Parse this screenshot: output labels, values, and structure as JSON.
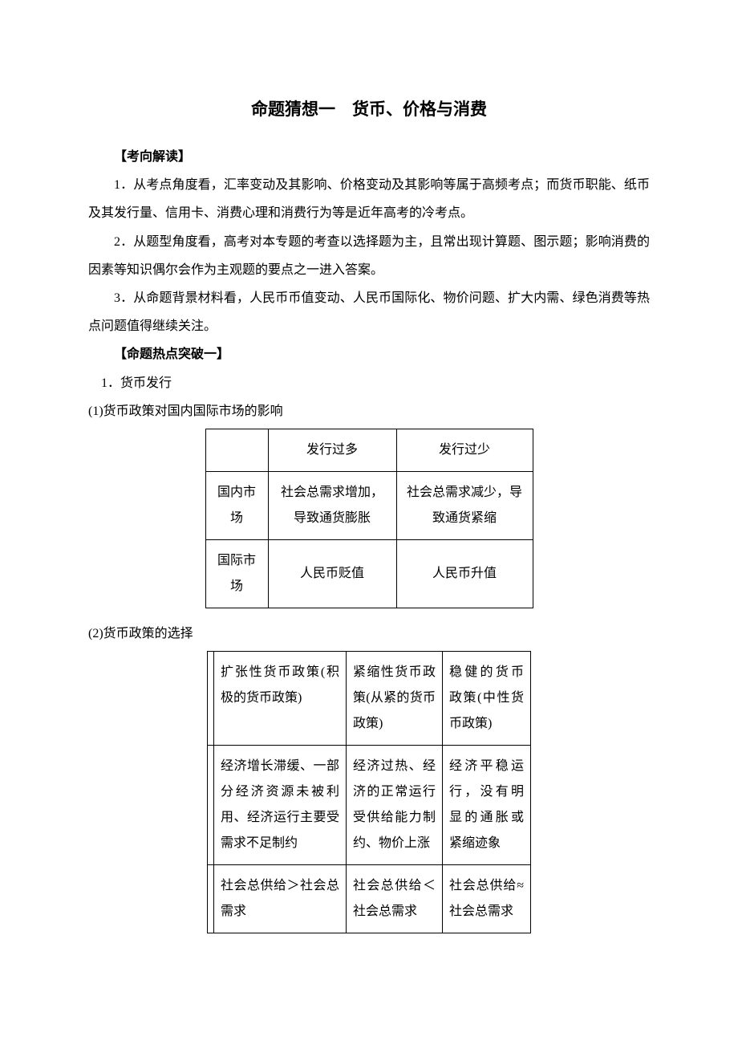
{
  "title": "命题猜想一　货币、价格与消费",
  "section1": {
    "header": "【考向解读】",
    "p1": "1．从考点角度看，汇率变动及其影响、价格变动及其影响等属于高频考点；而货币职能、纸币及其发行量、信用卡、消费心理和消费行为等是近年高考的冷考点。",
    "p2": "2．从题型角度看，高考对本专题的考查以选择题为主，且常出现计算题、图示题；影响消费的因素等知识偶尔会作为主观题的要点之一进入答案。",
    "p3": "3．从命题背景材料看，人民币币值变动、人民币国际化、物价问题、扩大内需、绿色消费等热点问题值得继续关注。"
  },
  "section2": {
    "header": "【命题热点突破一】",
    "s1": "1．货币发行",
    "s1_1": "(1)货币政策对国内国际市场的影响",
    "table1": {
      "h_empty": "",
      "h_col1": "发行过多",
      "h_col2": "发行过少",
      "r1_label": "国内市场",
      "r1_c1": "社会总需求增加，导致通货膨胀",
      "r1_c2": "社会总需求减少，导致通货紧缩",
      "r2_label": "国际市场",
      "r2_c1": "人民币贬值",
      "r2_c2": "人民币升值"
    },
    "s1_2": "(2)货币政策的选择",
    "table2": {
      "r0_c0": "",
      "r0_c1": "扩张性货币政策(积极的货币政策)",
      "r0_c2": "紧缩性货币政策(从紧的货币政策)",
      "r0_c3": "稳健的货币政策(中性货币政策)",
      "r1_c0": "",
      "r1_c1": "经济增长滞缓、一部分经济资源未被利用、经济运行主要受需求不足制约",
      "r1_c2": "经济过热、经济的正常运行受供给能力制约、物价上涨",
      "r1_c3": "经济平稳运行，没有明显的通胀或紧缩迹象",
      "r2_c0": "",
      "r2_c1": "社会总供给＞社会总需求",
      "r2_c2": "社会总供给＜社会总需求",
      "r2_c3": "社会总供给≈社会总需求"
    }
  },
  "colors": {
    "text": "#000000",
    "background": "#ffffff",
    "border": "#000000"
  },
  "fonts": {
    "title_size": 21,
    "body_size": 16,
    "family": "SimSun"
  }
}
